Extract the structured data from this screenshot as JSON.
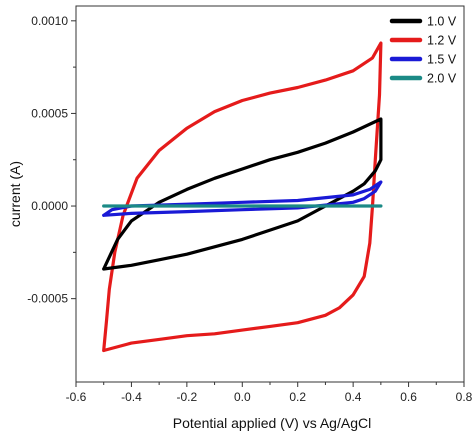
{
  "chart_data": {
    "type": "line",
    "xlabel": "Potential applied (V) vs Ag/AgCl",
    "ylabel": "current (A)",
    "xlim": [
      -0.6,
      0.8
    ],
    "ylim": [
      -0.00095,
      0.00108
    ],
    "x_ticks": [
      -0.6,
      -0.4,
      -0.2,
      0.0,
      0.2,
      0.4,
      0.6,
      0.8
    ],
    "x_tick_labels": [
      "-0.6",
      "-0.4",
      "-0.2",
      "0.0",
      "0.2",
      "0.4",
      "0.6",
      "0.8"
    ],
    "y_ticks": [
      -0.0005,
      0.0,
      0.0005,
      0.001
    ],
    "y_tick_labels": [
      "-0.0005",
      "0.0000",
      "0.0005",
      "0.0010"
    ],
    "grid": false,
    "legend_position": "top-right",
    "series": [
      {
        "name": "1.0 V",
        "color": "#000000",
        "points": [
          [
            -0.5,
            -0.00034
          ],
          [
            -0.45,
            -0.00018
          ],
          [
            -0.4,
            -8e-05
          ],
          [
            -0.3,
            2e-05
          ],
          [
            -0.2,
            9e-05
          ],
          [
            -0.1,
            0.00015
          ],
          [
            0.0,
            0.0002
          ],
          [
            0.1,
            0.00025
          ],
          [
            0.2,
            0.00029
          ],
          [
            0.3,
            0.00034
          ],
          [
            0.4,
            0.0004
          ],
          [
            0.5,
            0.00047
          ],
          [
            0.5,
            0.00025
          ],
          [
            0.48,
            0.00019
          ],
          [
            0.44,
            0.00012
          ],
          [
            0.4,
            8e-05
          ],
          [
            0.3,
            0.0
          ],
          [
            0.2,
            -8e-05
          ],
          [
            0.1,
            -0.00013
          ],
          [
            0.0,
            -0.00018
          ],
          [
            -0.1,
            -0.00022
          ],
          [
            -0.2,
            -0.00026
          ],
          [
            -0.3,
            -0.00029
          ],
          [
            -0.4,
            -0.00032
          ],
          [
            -0.5,
            -0.00034
          ]
        ]
      },
      {
        "name": "1.2 V",
        "color": "#e51b1b",
        "points": [
          [
            -0.5,
            -0.00078
          ],
          [
            -0.49,
            -0.00062
          ],
          [
            -0.48,
            -0.00045
          ],
          [
            -0.46,
            -0.00025
          ],
          [
            -0.43,
            -5e-05
          ],
          [
            -0.38,
            0.00015
          ],
          [
            -0.3,
            0.0003
          ],
          [
            -0.2,
            0.00042
          ],
          [
            -0.1,
            0.00051
          ],
          [
            0.0,
            0.00057
          ],
          [
            0.1,
            0.00061
          ],
          [
            0.2,
            0.00064
          ],
          [
            0.3,
            0.00068
          ],
          [
            0.4,
            0.00073
          ],
          [
            0.47,
            0.0008
          ],
          [
            0.5,
            0.00088
          ],
          [
            0.495,
            0.0006
          ],
          [
            0.48,
            0.00025
          ],
          [
            0.47,
            0.0
          ],
          [
            0.46,
            -0.0002
          ],
          [
            0.44,
            -0.00038
          ],
          [
            0.4,
            -0.00048
          ],
          [
            0.35,
            -0.00055
          ],
          [
            0.3,
            -0.00059
          ],
          [
            0.2,
            -0.00063
          ],
          [
            0.1,
            -0.00065
          ],
          [
            0.0,
            -0.00067
          ],
          [
            -0.1,
            -0.00069
          ],
          [
            -0.2,
            -0.0007
          ],
          [
            -0.3,
            -0.00072
          ],
          [
            -0.4,
            -0.00074
          ],
          [
            -0.5,
            -0.00078
          ]
        ]
      },
      {
        "name": "1.5 V",
        "color": "#1a1ad6",
        "points": [
          [
            -0.5,
            -5e-05
          ],
          [
            -0.47,
            -2e-05
          ],
          [
            -0.4,
            0.0
          ],
          [
            -0.2,
            1e-05
          ],
          [
            0.0,
            2e-05
          ],
          [
            0.2,
            3e-05
          ],
          [
            0.4,
            6e-05
          ],
          [
            0.46,
            9e-05
          ],
          [
            0.5,
            0.00013
          ],
          [
            0.48,
            8e-05
          ],
          [
            0.44,
            4e-05
          ],
          [
            0.4,
            2e-05
          ],
          [
            0.2,
            -1e-05
          ],
          [
            0.0,
            -2e-05
          ],
          [
            -0.2,
            -3e-05
          ],
          [
            -0.4,
            -4e-05
          ],
          [
            -0.5,
            -5e-05
          ]
        ]
      },
      {
        "name": "2.0 V",
        "color": "#1b8a86",
        "points": [
          [
            -0.5,
            0.0
          ],
          [
            -0.2,
            0.0
          ],
          [
            0.0,
            0.0
          ],
          [
            0.2,
            0.0
          ],
          [
            0.5,
            0.0
          ]
        ]
      }
    ]
  }
}
